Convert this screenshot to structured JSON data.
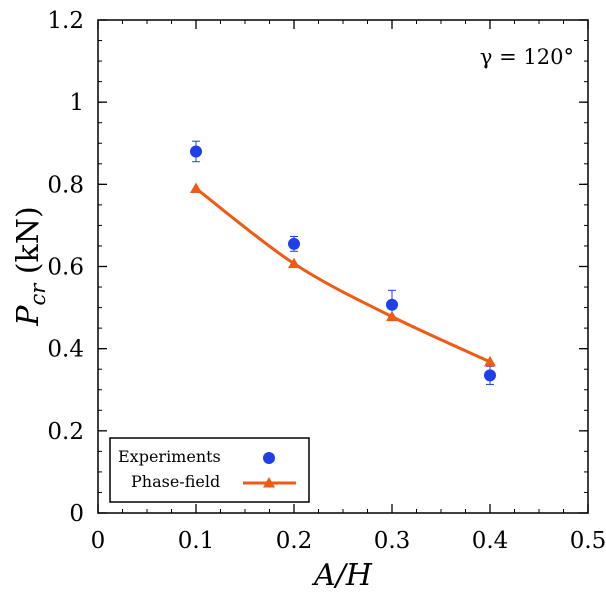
{
  "chart_data": {
    "type": "scatter",
    "title": "",
    "xlabel": "A/H",
    "ylabel_main": "P",
    "ylabel_sub": "cr",
    "ylabel_unit": " (kN)",
    "xlim": [
      0,
      0.5
    ],
    "ylim": [
      0,
      1.2
    ],
    "xticks": [
      0,
      0.1,
      0.2,
      0.3,
      0.4,
      0.5
    ],
    "xtick_labels": [
      "0",
      "0.1",
      "0.2",
      "0.3",
      "0.4",
      "0.5"
    ],
    "yticks": [
      0,
      0.2,
      0.4,
      0.6,
      0.8,
      1,
      1.2
    ],
    "ytick_labels": [
      "0",
      "0.2",
      "0.4",
      "0.6",
      "0.8",
      "1",
      "1.2"
    ],
    "annotation": "γ = 120°",
    "legend_position": "bottom-left",
    "series": [
      {
        "name": "Experiments",
        "marker": "circle",
        "color": "#1f3fe8",
        "x": [
          0.1,
          0.2,
          0.3,
          0.4
        ],
        "y": [
          0.88,
          0.655,
          0.507,
          0.335
        ],
        "error": [
          0.025,
          0.018,
          0.035,
          0.022
        ]
      },
      {
        "name": "Phase-field",
        "marker": "triangle",
        "color": "#f05a14",
        "x": [
          0.1,
          0.2,
          0.3,
          0.4
        ],
        "y": [
          0.79,
          0.607,
          0.478,
          0.368
        ]
      }
    ]
  }
}
